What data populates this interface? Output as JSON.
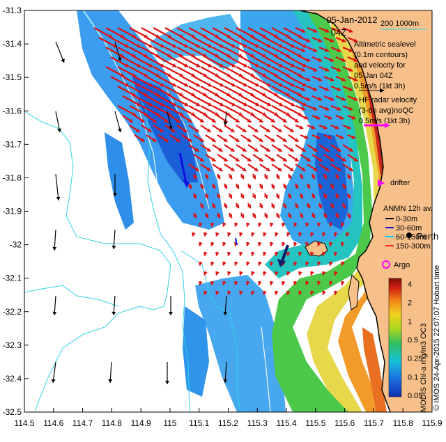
{
  "map": {
    "title_date": "05-Jan-2012",
    "title_hour": "04Z",
    "x_ticks": [
      "114.5",
      "114.6",
      "114.7",
      "114.8",
      "114.9",
      "115",
      "115.1",
      "115.2",
      "115.3",
      "115.4",
      "115.5",
      "115.6",
      "115.7",
      "115.8",
      "115.9"
    ],
    "y_ticks": [
      "-31.3",
      "-31.4",
      "-31.5",
      "-31.6",
      "-31.7",
      "-31.8",
      "-31.9",
      "-32",
      "-32.1",
      "-32.2",
      "-32.3",
      "-32.4",
      "-32.5"
    ],
    "lon_range": [
      114.5,
      115.9
    ],
    "lat_range": [
      -32.5,
      -31.3
    ],
    "colors": {
      "land": "#f7c08a",
      "coast": "#000000",
      "contour": "#2fd3e6",
      "altimetry_arrow": "#000000",
      "hf_radar_arrow": "#e01010",
      "drifter": "#ff00ff"
    }
  },
  "legend": {
    "isobaths_label": "200   1000m",
    "altimetry_lines": [
      "Altimetric sealevel",
      "(0.1m contours)",
      "and velocity for",
      "05-Jan 04Z",
      "0.5m/s (1kt 3h)"
    ],
    "hf_lines": [
      "HF radar velocity",
      "(3-6h avg)noQC",
      "0.5m/s (1kt 3h)"
    ],
    "drifter_label": "drifter",
    "anmn_title": "ANMN 12h av.",
    "anmn_items": [
      {
        "label": "0-30m",
        "color": "#000000"
      },
      {
        "label": "30-60m",
        "color": "#1010e0"
      },
      {
        "label": "60-150m",
        "color": "#00c8ff"
      },
      {
        "label": "150-300m",
        "color": "#ff2020"
      }
    ],
    "place_perth": "Perth",
    "argo_label": "Argo"
  },
  "colorbar": {
    "labels": [
      "4",
      "2",
      "1",
      "0.5",
      "0.25",
      "0.1",
      "0.05"
    ],
    "side_title": "MODIS Chl-a mg/m3 OC3",
    "credit": "© IMOS 24-Apr-2015 22:07:07 Hobart time"
  }
}
